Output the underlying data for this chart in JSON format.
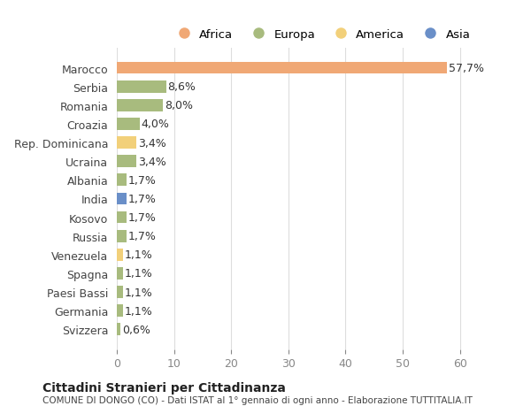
{
  "categories": [
    "Marocco",
    "Serbia",
    "Romania",
    "Croazia",
    "Rep. Dominicana",
    "Ucraina",
    "Albania",
    "India",
    "Kosovo",
    "Russia",
    "Venezuela",
    "Spagna",
    "Paesi Bassi",
    "Germania",
    "Svizzera"
  ],
  "values": [
    57.7,
    8.6,
    8.0,
    4.0,
    3.4,
    3.4,
    1.7,
    1.7,
    1.7,
    1.7,
    1.1,
    1.1,
    1.1,
    1.1,
    0.6
  ],
  "labels": [
    "57,7%",
    "8,6%",
    "8,0%",
    "4,0%",
    "3,4%",
    "3,4%",
    "1,7%",
    "1,7%",
    "1,7%",
    "1,7%",
    "1,1%",
    "1,1%",
    "1,1%",
    "1,1%",
    "0,6%"
  ],
  "colors": [
    "#F0A875",
    "#A8BB7E",
    "#A8BB7E",
    "#A8BB7E",
    "#F2D07A",
    "#A8BB7E",
    "#A8BB7E",
    "#6A8FC8",
    "#A8BB7E",
    "#A8BB7E",
    "#F2D07A",
    "#A8BB7E",
    "#A8BB7E",
    "#A8BB7E",
    "#A8BB7E"
  ],
  "continent_colors": {
    "Africa": "#F0A875",
    "Europa": "#A8BB7E",
    "America": "#F2D07A",
    "Asia": "#6A8FC8"
  },
  "legend_labels": [
    "Africa",
    "Europa",
    "America",
    "Asia"
  ],
  "title": "Cittadini Stranieri per Cittadinanza",
  "subtitle": "COMUNE DI DONGO (CO) - Dati ISTAT al 1° gennaio di ogni anno - Elaborazione TUTTITALIA.IT",
  "xlim": [
    0,
    65
  ],
  "xticks": [
    0,
    10,
    20,
    30,
    40,
    50,
    60
  ],
  "background_color": "#ffffff",
  "bar_height": 0.65,
  "label_fontsize": 9,
  "tick_fontsize": 9
}
